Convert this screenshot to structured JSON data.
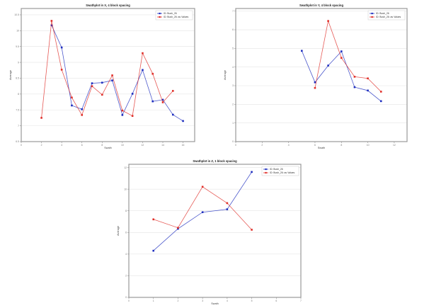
{
  "chart_data": [
    {
      "type": "line",
      "title": "Swathplot in X, 4 block spacing",
      "xlabel": "Swath",
      "ylabel": "Average",
      "xlim": [
        0,
        17.15
      ],
      "ylim": [
        6.5,
        10.7
      ],
      "xticks": [
        0,
        2,
        4,
        6,
        8,
        10,
        12,
        14,
        16
      ],
      "yticks": [
        6.5,
        7.0,
        7.5,
        8.0,
        8.5,
        9.0,
        9.5,
        10.0,
        10.5
      ],
      "grid": true,
      "legend": "top-right",
      "series": [
        {
          "name": "ID: Bush_26",
          "color": "#1f2fbf",
          "x": [
            3,
            4,
            5,
            6,
            7,
            8,
            9,
            10,
            11,
            12,
            13,
            14,
            15,
            16
          ],
          "y": [
            10.17,
            9.47,
            7.64,
            7.52,
            8.34,
            8.36,
            8.43,
            7.34,
            8.01,
            8.76,
            7.77,
            7.82,
            7.35,
            7.15
          ]
        },
        {
          "name": "ID: Bush_26: as Values",
          "color": "#e0302a",
          "x": [
            2,
            3,
            4,
            5,
            6,
            7,
            8,
            9,
            10,
            11,
            12,
            13,
            14,
            15
          ],
          "y": [
            7.25,
            10.31,
            8.77,
            7.89,
            7.34,
            8.25,
            7.98,
            8.59,
            7.48,
            7.31,
            9.29,
            8.64,
            7.74,
            8.1
          ]
        }
      ]
    },
    {
      "type": "line",
      "title": "Swathplot in Y, 4 block spacing",
      "xlabel": "Swath",
      "ylabel": "Average",
      "xlim": [
        0,
        12.97
      ],
      "ylim": [
        0,
        7.14
      ],
      "xticks": [
        0,
        2,
        4,
        6,
        8,
        10,
        12
      ],
      "yticks": [
        0,
        1,
        2,
        3,
        4,
        5,
        6,
        7
      ],
      "grid": true,
      "legend": "top-right",
      "series": [
        {
          "name": "ID: Bush_26",
          "color": "#1f2fbf",
          "x": [
            5,
            6,
            7,
            8,
            9,
            10,
            11
          ],
          "y": [
            4.87,
            3.18,
            4.08,
            4.84,
            2.92,
            2.74,
            2.17
          ]
        },
        {
          "name": "ID: Bush_26: as Values",
          "color": "#e0302a",
          "x": [
            6,
            7,
            8,
            9,
            10,
            11
          ],
          "y": [
            2.88,
            6.47,
            4.49,
            3.48,
            3.39,
            2.68
          ]
        }
      ]
    },
    {
      "type": "line",
      "title": "Swathplot in Z, 1 block spacing",
      "xlabel": "Swath",
      "ylabel": "Average",
      "xlim": [
        0,
        7
      ],
      "ylim": [
        0,
        12.3
      ],
      "xticks": [
        0,
        1,
        2,
        3,
        4,
        5,
        6,
        7
      ],
      "yticks": [
        0,
        2,
        4,
        6,
        8,
        10,
        12
      ],
      "grid": true,
      "legend": "top-right",
      "series": [
        {
          "name": "ID: Bush_26",
          "color": "#1f2fbf",
          "x": [
            1,
            2,
            3,
            4,
            5
          ],
          "y": [
            4.31,
            6.34,
            7.87,
            8.14,
            11.59
          ]
        },
        {
          "name": "ID: Bush_26: as Values",
          "color": "#e0302a",
          "x": [
            1,
            2,
            3,
            4,
            5
          ],
          "y": [
            7.21,
            6.43,
            10.22,
            8.71,
            6.25
          ]
        }
      ]
    }
  ]
}
